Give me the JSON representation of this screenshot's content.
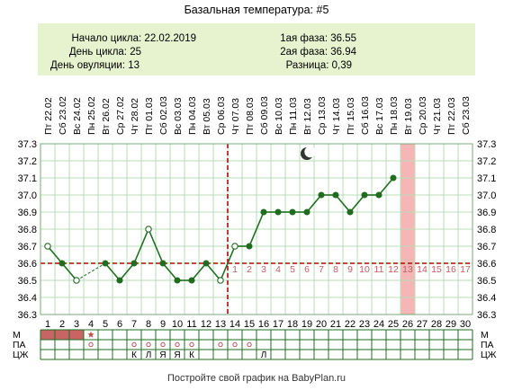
{
  "header": {
    "title": "Базальная температура: #5",
    "cycle_start": "Начало цикла: 22.02.2019",
    "cycle_day": "День цикла: 25",
    "ovulation_day": "День овуляции: 13",
    "phase1": "1ая фаза: 36.55",
    "phase2": "2ая фаза: 36.94",
    "difference": "Разница: 0,39"
  },
  "colors": {
    "background": "#ffffff",
    "info_panel": "#e7f2cf",
    "grid_line": "#b9dcb8",
    "temp_line": "#1f6e1f",
    "point_fill": "#1f6e1f",
    "open_point_fill": "#ffffff",
    "coverline": "#c00000",
    "ovulation_line": "#c00000",
    "current_day_band": "#f7b6b6",
    "post_ovulation_numbers": "#c06060",
    "menstruation_fill": "#c96464",
    "ring_marker": "#c05050",
    "star_marker": "#c05050"
  },
  "icons": {
    "moon": "crescent-moon-icon",
    "star": "star-icon"
  },
  "chart_data": {
    "type": "line",
    "title": "",
    "x_day_numbers": [
      "1",
      "2",
      "3",
      "4",
      "5",
      "6",
      "7",
      "8",
      "9",
      "10",
      "11",
      "12",
      "13",
      "14",
      "15",
      "16",
      "17",
      "18",
      "19",
      "20",
      "21",
      "22",
      "23",
      "24",
      "25",
      "26",
      "27",
      "28",
      "29",
      "30"
    ],
    "x_dates": [
      "Пт 22.02",
      "Сб 23.02",
      "Вс 24.02",
      "Пн 25.02",
      "Вт 26.02",
      "Ср 27.02",
      "Чт 28.02",
      "Пт 01.03",
      "Сб 02.03",
      "Вс 03.03",
      "Пн 04.03",
      "Вт 05.03",
      "Ср 06.03",
      "Чт 07.03",
      "Пт 08.03",
      "Сб 09.03",
      "Вс 10.03",
      "Пн 11.03",
      "Вт 12.03",
      "Ср 13.03",
      "Чт 14.03",
      "Пт 15.03",
      "Сб 16.03",
      "Вс 17.03",
      "Пн 18.03",
      "Вт 19.03",
      "Ср 20.03",
      "Чт 21.03",
      "Пт 22.03",
      "Сб 23.03"
    ],
    "y_ticks": [
      "37.3",
      "37.2",
      "37.1",
      "37.0",
      "36.9",
      "36.8",
      "36.7",
      "36.6",
      "36.5",
      "36.4",
      "36.3"
    ],
    "ylim": [
      36.3,
      37.3
    ],
    "series": [
      {
        "days": [
          1,
          2,
          3,
          4,
          5,
          6,
          7,
          8,
          9,
          10,
          11,
          12,
          13,
          14,
          15,
          16,
          17,
          18,
          19,
          20,
          21,
          22,
          23,
          24,
          25
        ],
        "values": [
          36.7,
          36.6,
          36.5,
          null,
          36.6,
          36.5,
          36.6,
          36.8,
          36.6,
          36.5,
          36.5,
          36.6,
          36.5,
          36.7,
          36.7,
          36.9,
          36.9,
          36.9,
          36.9,
          37.0,
          37.0,
          36.9,
          37.0,
          37.0,
          37.1
        ],
        "open_points": [
          1,
          3,
          8,
          13,
          14
        ],
        "dashed_segments": [
          [
            3,
            5
          ]
        ]
      }
    ],
    "coverline_value": 36.6,
    "ovulation_day": 13,
    "current_day": 26,
    "moon_day": 19,
    "post_ovulation_numbers": [
      "1",
      "2",
      "3",
      "4",
      "5",
      "6",
      "7",
      "8",
      "9",
      "10",
      "11",
      "12",
      "13",
      "14",
      "15",
      "16",
      "17"
    ],
    "grid": true
  },
  "table": {
    "row_labels": [
      "М",
      "ПА",
      "ЦЖ"
    ],
    "menstruation_days": [
      1,
      2,
      3
    ],
    "star_days": [
      4
    ],
    "pa_ring_days": [
      4,
      7,
      8,
      9,
      10,
      11,
      13,
      14,
      15
    ],
    "symptoms": [
      {
        "day": 7,
        "text": "К"
      },
      {
        "day": 8,
        "text": "Л"
      },
      {
        "day": 9,
        "text": "Я"
      },
      {
        "day": 10,
        "text": "Я"
      },
      {
        "day": 11,
        "text": "К"
      },
      {
        "day": 16,
        "text": "Л"
      }
    ]
  },
  "footer": {
    "text": "Постройте свой график на BabyPlan.ru"
  }
}
